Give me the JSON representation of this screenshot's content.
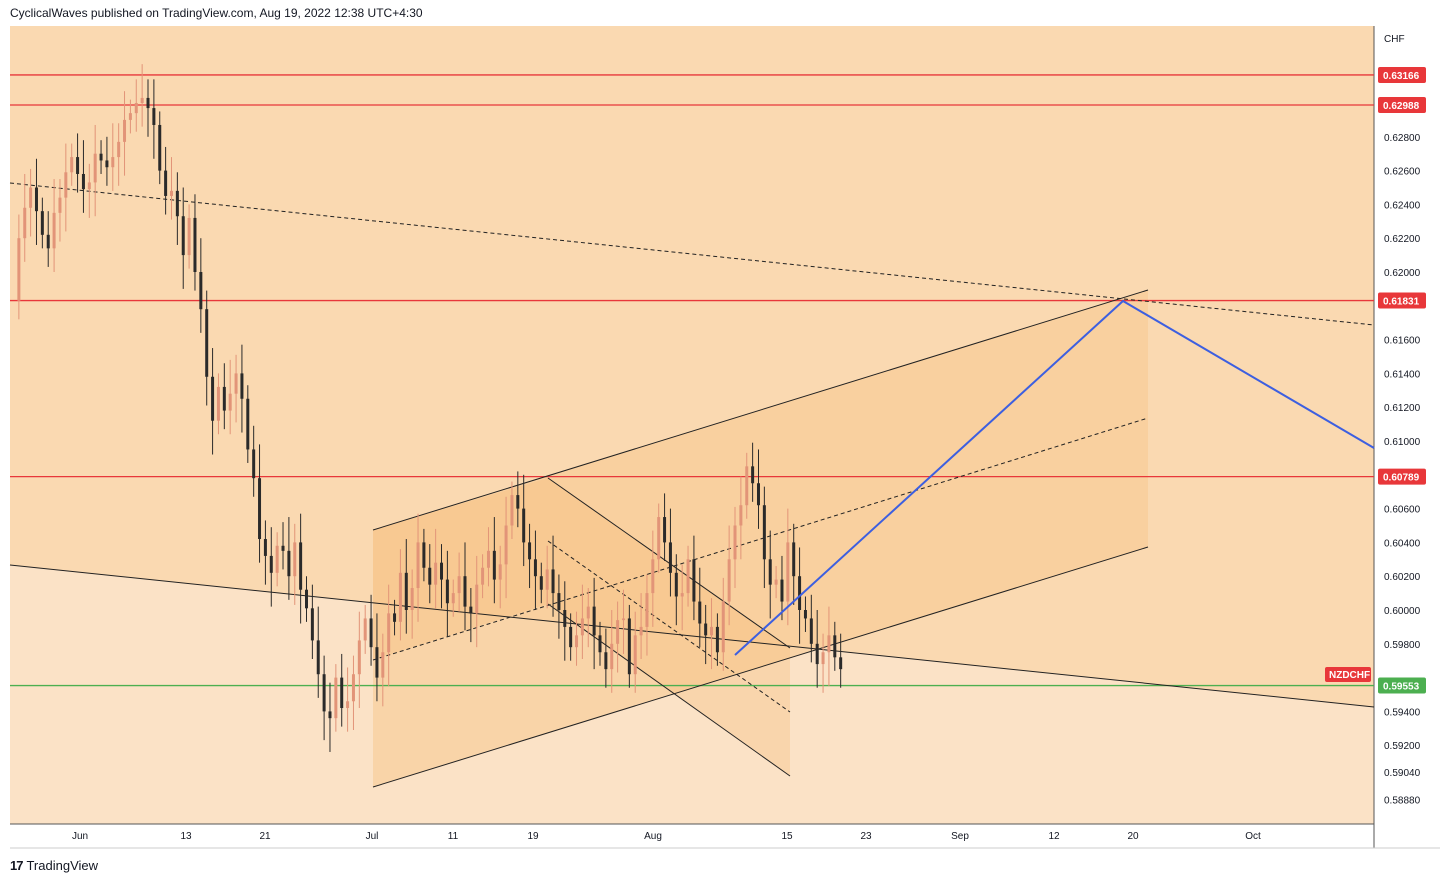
{
  "header": {
    "publisher_line": "CyclicalWaves published on TradingView.com, Aug 19, 2022 12:38 UTC+4:30"
  },
  "footer": {
    "brand": "TradingView",
    "logo_glyph": "17"
  },
  "colors": {
    "chart_bg": "#fad9b1",
    "lower_zone_bg": "#fbe2c6",
    "channel_fill": "#f8c88f",
    "candle_up": "#e29478",
    "candle_down": "#2a2a2a",
    "resistance_line": "#e8373a",
    "support_line": "#4caf50",
    "projection_line": "#3d5fe0",
    "trend_line": "#222222"
  },
  "chart_data": {
    "type": "candlestick",
    "symbol": "NZDCHF",
    "currency": "CHF",
    "x_ticks": [
      "Jun",
      "13",
      "21",
      "Jul",
      "11",
      "19",
      "Aug",
      "15",
      "23",
      "Sep",
      "12",
      "20",
      "Oct"
    ],
    "y_ticks": [
      "0.62800",
      "0.62600",
      "0.62400",
      "0.62200",
      "0.62000",
      "0.61600",
      "0.61400",
      "0.61200",
      "0.61000",
      "0.60600",
      "0.60400",
      "0.60200",
      "0.60000",
      "0.59800",
      "0.59400",
      "0.59200",
      "0.59040",
      "0.58880"
    ],
    "horizontal_levels": [
      {
        "label": "0.63166",
        "value": 0.63166,
        "color": "#e8373a"
      },
      {
        "label": "0.62988",
        "value": 0.62988,
        "color": "#e8373a"
      },
      {
        "label": "0.61831",
        "value": 0.61831,
        "color": "#e8373a"
      },
      {
        "label": "0.60789",
        "value": 0.60789,
        "color": "#e8373a"
      },
      {
        "label": "0.59553",
        "value": 0.59553,
        "color": "#4caf50"
      }
    ],
    "symbol_badge": {
      "label": "NZDCHF",
      "color": "#e8373a"
    },
    "projection": {
      "from": [
        "Aug 12",
        0.5972
      ],
      "peak": [
        "Sep 19",
        0.618
      ],
      "to": [
        "Oct end",
        0.6093
      ]
    },
    "price_path": [
      [
        0,
        0.6183
      ],
      [
        1,
        0.622
      ],
      [
        2,
        0.6238
      ],
      [
        3,
        0.625
      ],
      [
        4,
        0.6236
      ],
      [
        5,
        0.6222
      ],
      [
        6,
        0.6214
      ],
      [
        7,
        0.6235
      ],
      [
        8,
        0.6244
      ],
      [
        9,
        0.6259
      ],
      [
        10,
        0.6268
      ],
      [
        11,
        0.6258
      ],
      [
        12,
        0.6249
      ],
      [
        13,
        0.6253
      ],
      [
        14,
        0.627
      ],
      [
        15,
        0.6266
      ],
      [
        16,
        0.6262
      ],
      [
        17,
        0.6268
      ],
      [
        18,
        0.6277
      ],
      [
        19,
        0.629
      ],
      [
        20,
        0.6294
      ],
      [
        21,
        0.63
      ],
      [
        22,
        0.6303
      ],
      [
        23,
        0.6297
      ],
      [
        24,
        0.6287
      ],
      [
        25,
        0.626
      ],
      [
        26,
        0.6245
      ],
      [
        27,
        0.6248
      ],
      [
        28,
        0.6233
      ],
      [
        29,
        0.621
      ],
      [
        30,
        0.6232
      ],
      [
        31,
        0.62
      ],
      [
        32,
        0.6178
      ],
      [
        33,
        0.6138
      ],
      [
        34,
        0.6112
      ],
      [
        35,
        0.6132
      ],
      [
        36,
        0.6118
      ],
      [
        37,
        0.6128
      ],
      [
        38,
        0.614
      ],
      [
        39,
        0.6125
      ],
      [
        40,
        0.6095
      ],
      [
        41,
        0.6078
      ],
      [
        42,
        0.6042
      ],
      [
        43,
        0.6032
      ],
      [
        44,
        0.6022
      ],
      [
        45,
        0.6038
      ],
      [
        46,
        0.6035
      ],
      [
        47,
        0.602
      ],
      [
        48,
        0.604
      ],
      [
        49,
        0.6012
      ],
      [
        50,
        0.6001
      ],
      [
        51,
        0.5982
      ],
      [
        52,
        0.5962
      ],
      [
        53,
        0.594
      ],
      [
        54,
        0.5936
      ],
      [
        55,
        0.596
      ],
      [
        56,
        0.5942
      ],
      [
        57,
        0.5946
      ],
      [
        58,
        0.5962
      ],
      [
        59,
        0.5982
      ],
      [
        60,
        0.5995
      ],
      [
        61,
        0.5978
      ],
      [
        62,
        0.596
      ],
      [
        63,
        0.5975
      ],
      [
        64,
        0.5998
      ],
      [
        65,
        0.5993
      ],
      [
        66,
        0.6022
      ],
      [
        67,
        0.6
      ],
      [
        68,
        0.6013
      ],
      [
        69,
        0.604
      ],
      [
        70,
        0.6025
      ],
      [
        71,
        0.6015
      ],
      [
        72,
        0.6028
      ],
      [
        73,
        0.6018
      ],
      [
        74,
        0.6004
      ],
      [
        75,
        0.601
      ],
      [
        76,
        0.602
      ],
      [
        77,
        0.6002
      ],
      [
        78,
        0.5998
      ],
      [
        79,
        0.6015
      ],
      [
        80,
        0.6025
      ],
      [
        81,
        0.6035
      ],
      [
        82,
        0.6018
      ],
      [
        83,
        0.6027
      ],
      [
        84,
        0.605
      ],
      [
        85,
        0.6068
      ],
      [
        86,
        0.606
      ],
      [
        87,
        0.604
      ],
      [
        88,
        0.603
      ],
      [
        89,
        0.602
      ],
      [
        90,
        0.6012
      ],
      [
        91,
        0.6024
      ],
      [
        92,
        0.601
      ],
      [
        93,
        0.6
      ],
      [
        94,
        0.599
      ],
      [
        95,
        0.5978
      ],
      [
        96,
        0.5985
      ],
      [
        97,
        0.5995
      ],
      [
        98,
        0.6002
      ],
      [
        99,
        0.5985
      ],
      [
        100,
        0.5975
      ],
      [
        101,
        0.5965
      ],
      [
        102,
        0.598
      ],
      [
        103,
        0.5994
      ],
      [
        104,
        0.5995
      ],
      [
        105,
        0.5962
      ],
      [
        106,
        0.5985
      ],
      [
        107,
        0.599
      ],
      [
        108,
        0.601
      ],
      [
        109,
        0.603
      ],
      [
        110,
        0.6055
      ],
      [
        111,
        0.604
      ],
      [
        112,
        0.6022
      ],
      [
        113,
        0.6008
      ],
      [
        114,
        0.601
      ],
      [
        115,
        0.603
      ],
      [
        116,
        0.6005
      ],
      [
        117,
        0.5992
      ],
      [
        118,
        0.5985
      ],
      [
        119,
        0.599
      ],
      [
        120,
        0.5975
      ],
      [
        121,
        0.6005
      ],
      [
        122,
        0.603
      ],
      [
        123,
        0.605
      ],
      [
        124,
        0.6062
      ],
      [
        125,
        0.6085
      ],
      [
        126,
        0.6075
      ],
      [
        127,
        0.6062
      ],
      [
        128,
        0.603
      ],
      [
        129,
        0.6015
      ],
      [
        130,
        0.6018
      ],
      [
        131,
        0.6005
      ],
      [
        132,
        0.604
      ],
      [
        133,
        0.602
      ],
      [
        134,
        0.6
      ],
      [
        135,
        0.5995
      ],
      [
        136,
        0.598
      ],
      [
        137,
        0.5968
      ],
      [
        138,
        0.5975
      ],
      [
        139,
        0.5985
      ],
      [
        140,
        0.5972
      ],
      [
        141,
        0.5965
      ]
    ]
  }
}
